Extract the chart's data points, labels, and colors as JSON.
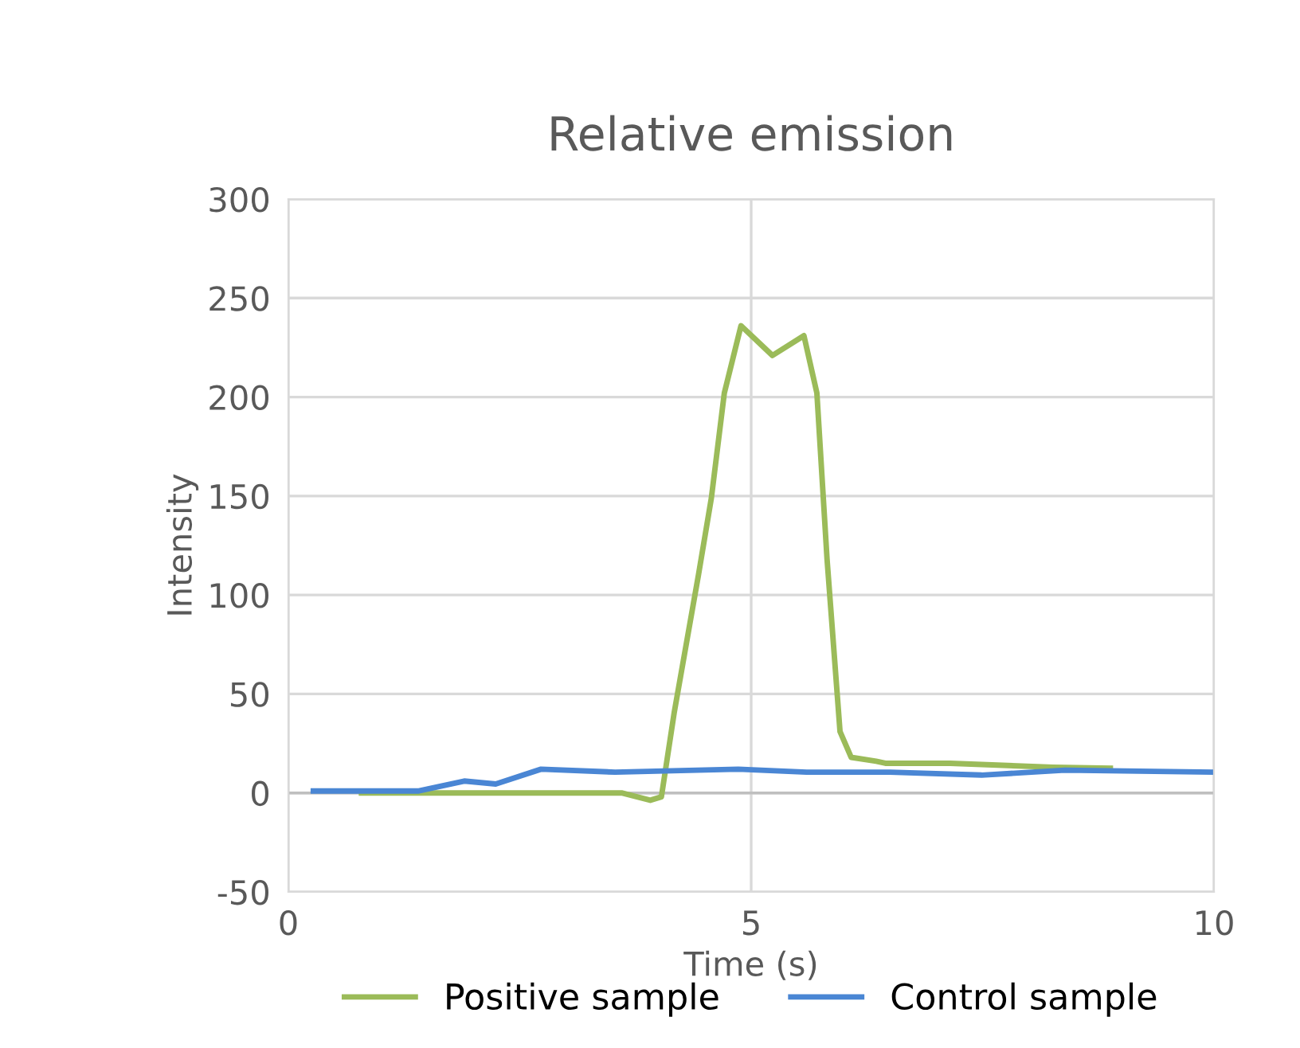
{
  "chart_data": {
    "type": "line",
    "title": "Relative emission",
    "xlabel": "Time (s)",
    "ylabel": "Intensity",
    "xlim": [
      0,
      10
    ],
    "xticks": [
      0,
      5,
      10
    ],
    "ylim": [
      -50,
      300
    ],
    "yticks": [
      -50,
      0,
      50,
      100,
      150,
      200,
      250,
      300
    ],
    "grid": true,
    "legend": "bottom",
    "marker": "none",
    "line_style": "solid",
    "series": [
      {
        "name": "Positive sample",
        "color": "#9bbb59",
        "x": [
          0.79,
          2.0,
          3.6,
          3.91,
          4.03,
          4.17,
          4.43,
          4.57,
          4.71,
          4.89,
          5.23,
          5.57,
          5.71,
          5.82,
          5.96,
          6.08,
          6.35,
          6.45,
          7.15,
          8.26,
          8.88
        ],
        "values": [
          0,
          0,
          0,
          -3.7,
          -2,
          41,
          110,
          149,
          202,
          236,
          221,
          231,
          202,
          118,
          31,
          18,
          16,
          15,
          15,
          13,
          12.5
        ]
      },
      {
        "name": "Control sample",
        "color": "#4a86d4",
        "x": [
          0.27,
          1.41,
          1.9,
          2.24,
          2.73,
          3.53,
          4.86,
          5.6,
          6.5,
          7.49,
          8.39,
          9.98
        ],
        "values": [
          1,
          1,
          6,
          4.5,
          12,
          10.5,
          12,
          10.5,
          10.5,
          9,
          11.5,
          10.5
        ]
      }
    ]
  }
}
